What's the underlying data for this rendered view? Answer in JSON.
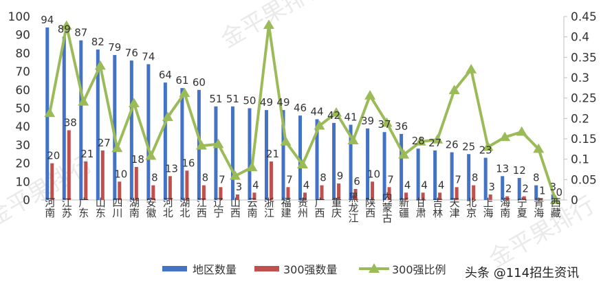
{
  "chart_data": {
    "type": "bar+line",
    "categories": [
      "河南",
      "江苏",
      "广东",
      "山东",
      "四川",
      "湖南",
      "安徽",
      "河北",
      "湖北",
      "江西",
      "辽宁",
      "山西",
      "云南",
      "浙江",
      "福建",
      "贵州",
      "广西",
      "重庆",
      "黑龙江",
      "陕西",
      "内蒙古",
      "新疆",
      "甘肃",
      "吉林",
      "天津",
      "北京",
      "上海",
      "海南",
      "宁夏",
      "青海",
      "西藏"
    ],
    "series": [
      {
        "name": "地区数量",
        "type": "bar",
        "axis": "left",
        "color": "#4472c4",
        "values": [
          94,
          89,
          87,
          82,
          79,
          76,
          74,
          64,
          61,
          60,
          51,
          51,
          50,
          49,
          49,
          46,
          44,
          42,
          41,
          39,
          37,
          36,
          28,
          27,
          26,
          25,
          23,
          13,
          12,
          8,
          3
        ]
      },
      {
        "name": "300强数量",
        "type": "bar",
        "axis": "left",
        "color": "#c0504d",
        "values": [
          20,
          38,
          21,
          27,
          10,
          18,
          8,
          13,
          16,
          8,
          7,
          3,
          4,
          21,
          7,
          4,
          8,
          9,
          6,
          10,
          7,
          4,
          4,
          4,
          7,
          8,
          3,
          2,
          2,
          1,
          0
        ]
      },
      {
        "name": "300强比例",
        "type": "line",
        "axis": "right",
        "color": "#9bbb59",
        "values": [
          0.213,
          0.427,
          0.241,
          0.329,
          0.127,
          0.237,
          0.108,
          0.203,
          0.262,
          0.133,
          0.137,
          0.059,
          0.08,
          0.429,
          0.143,
          0.087,
          0.182,
          0.214,
          0.146,
          0.256,
          0.189,
          0.111,
          0.143,
          0.148,
          0.269,
          0.32,
          0.13,
          0.154,
          0.167,
          0.125,
          0.0
        ]
      }
    ],
    "label_overrides": {
      "2": [
        0,
        "3"
      ]
    },
    "y_left": {
      "lim": [
        0,
        100
      ],
      "ticks": [
        "0",
        "10",
        "20",
        "30",
        "40",
        "50",
        "60",
        "70",
        "80",
        "90",
        "100"
      ]
    },
    "y_right": {
      "lim": [
        0,
        0.45
      ],
      "ticks": [
        "0",
        "0.05",
        "0.1",
        "0.15",
        "0.2",
        "0.25",
        "0.3",
        "0.35",
        "0.4",
        "0.45"
      ]
    },
    "legend": {
      "position": "bottom"
    },
    "watermark_text": "金平果排行",
    "credit": "头条 @114招生资讯"
  }
}
